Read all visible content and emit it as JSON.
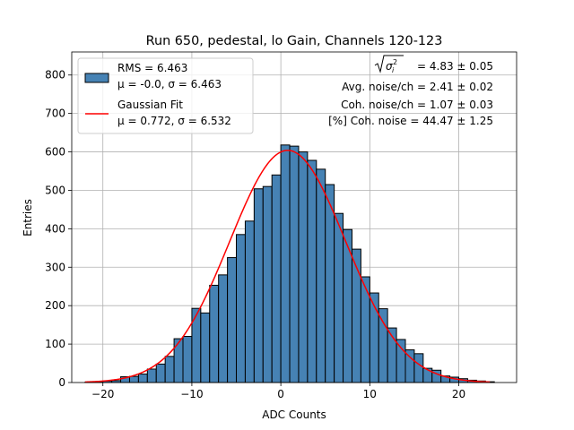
{
  "chart_data": {
    "type": "bar",
    "title": "Run 650, pedestal, lo Gain, Channels 120-123",
    "xlabel": "ADC Counts",
    "ylabel": "Entries",
    "xlim": [
      -23.5,
      26.5
    ],
    "ylim": [
      0,
      860
    ],
    "xticks": [
      -20,
      -10,
      0,
      10,
      20
    ],
    "xtick_labels": [
      "−20",
      "−10",
      "0",
      "10",
      "20"
    ],
    "yticks": [
      0,
      100,
      200,
      300,
      400,
      500,
      600,
      700,
      800
    ],
    "ytick_labels": [
      "0",
      "100",
      "200",
      "300",
      "400",
      "500",
      "600",
      "700",
      "800"
    ],
    "grid": true,
    "bar_color": "#4682b4",
    "fit_color": "#ff0000",
    "bins": {
      "edges": [
        -22,
        -21,
        -20,
        -19,
        -18,
        -17,
        -16,
        -15,
        -14,
        -13,
        -12,
        -11,
        -10,
        -9,
        -8,
        -7,
        -6,
        -5,
        -4,
        -3,
        -2,
        -1,
        0,
        1,
        2,
        3,
        4,
        5,
        6,
        7,
        8,
        9,
        10,
        11,
        12,
        13,
        14,
        15,
        16,
        17,
        18,
        19,
        20,
        21,
        22,
        23,
        24
      ],
      "counts": [
        1,
        2,
        4,
        5,
        15,
        16,
        22,
        35,
        48,
        68,
        114,
        120,
        193,
        181,
        253,
        280,
        325,
        385,
        420,
        504,
        510,
        540,
        618,
        615,
        600,
        578,
        555,
        515,
        440,
        398,
        347,
        275,
        233,
        192,
        142,
        112,
        85,
        75,
        37,
        32,
        17,
        14,
        10,
        6,
        4,
        2
      ]
    },
    "fit": {
      "type": "gaussian",
      "amplitude": 604,
      "mu": 0.772,
      "sigma": 6.532,
      "x_range": [
        -22,
        23.5
      ]
    },
    "legend": {
      "position": "top-left",
      "entries": [
        {
          "symbol": "bar",
          "line1": "RMS = 6.463",
          "line2": "μ = -0.0, σ = 6.463"
        },
        {
          "symbol": "line",
          "line1": "Gaussian Fit",
          "line2": "μ = 0.772, σ = 6.532"
        }
      ]
    },
    "annotations": {
      "position": "top-right",
      "sigma_value": "= 4.83 ± 0.05",
      "lines": [
        "Avg. noise/ch = 2.41 ± 0.02",
        "Coh. noise/ch = 1.07 ± 0.03",
        "[%] Coh. noise = 44.47 ± 1.25"
      ]
    }
  }
}
